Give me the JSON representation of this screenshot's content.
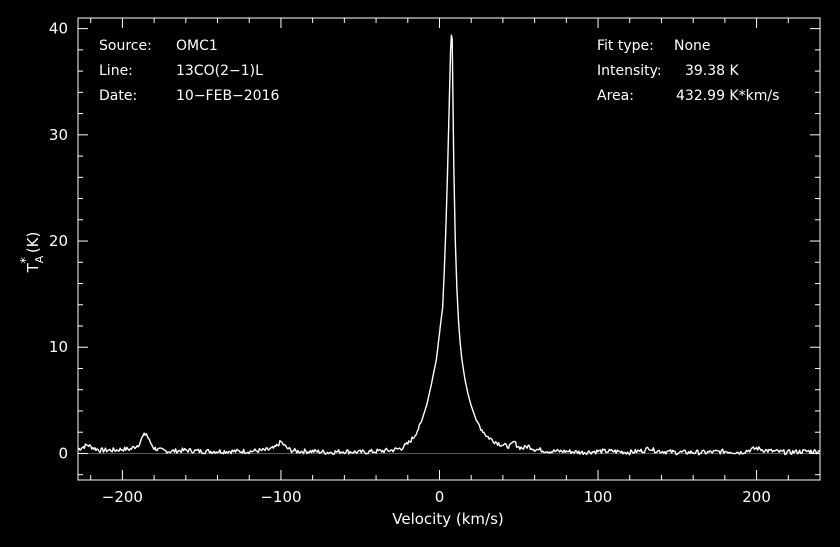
{
  "chart_data": {
    "type": "line",
    "xlabel": "Velocity (km/s)",
    "ylabel_main": "T",
    "ylabel_sub": "A",
    "ylabel_sup": "*",
    "ylabel_unit": "(K)",
    "xlim": [
      -228,
      240
    ],
    "ylim": [
      -2.5,
      41
    ],
    "xticks": [
      -200,
      -100,
      0,
      100,
      200
    ],
    "yticks": [
      0,
      10,
      20,
      30,
      40
    ],
    "xtick_labels": [
      "−200",
      "−100",
      "0",
      "100",
      "200"
    ],
    "ytick_labels": [
      "0",
      "10",
      "20",
      "30",
      "40"
    ],
    "baseline": 0,
    "info_left": {
      "source_label": "Source:",
      "source_value": "OMC1",
      "line_label": "Line:",
      "line_value": "13CO(2−1)L",
      "date_label": "Date:",
      "date_value": "10−FEB−2016"
    },
    "info_right": {
      "fit_label": "Fit type:",
      "fit_value": "None",
      "intensity_label": "Intensity:",
      "intensity_value": "39.38 K",
      "area_label": "Area:",
      "area_value": "432.99 K*km/s"
    },
    "series": [
      {
        "x": [
          -228,
          -222,
          -218,
          -214,
          -210,
          -205,
          -200,
          -195,
          -190,
          -187,
          -185,
          -183,
          -180,
          -176,
          -170,
          -160,
          -150,
          -140,
          -130,
          -120,
          -110,
          -104,
          -100,
          -97,
          -94,
          -90,
          -80,
          -70,
          -60,
          -50,
          -40,
          -30,
          -24,
          -20,
          -16,
          -12,
          -8,
          -5,
          -2,
          0,
          2,
          3,
          4,
          5,
          6,
          7,
          7.5,
          8,
          8.5,
          9,
          10,
          11,
          12,
          13,
          14,
          16,
          18,
          20,
          23,
          26,
          30,
          34,
          38,
          42,
          45,
          47,
          48,
          50,
          53,
          56,
          60,
          65,
          70,
          80,
          90,
          100,
          110,
          120,
          125,
          130,
          132,
          135,
          140,
          150,
          160,
          170,
          180,
          190,
          195,
          198,
          200,
          205,
          210,
          220,
          230,
          240
        ],
        "values": [
          0.4,
          0.8,
          0.5,
          0.3,
          0.3,
          0.3,
          0.4,
          0.4,
          0.8,
          1.6,
          1.9,
          1.2,
          0.5,
          0.3,
          0.2,
          0.3,
          0.2,
          0.2,
          0.2,
          0.2,
          0.3,
          0.5,
          1.1,
          0.6,
          0.3,
          0.2,
          0.2,
          0.1,
          0.2,
          0.1,
          0.2,
          0.3,
          0.5,
          0.9,
          1.6,
          2.7,
          4.6,
          6.6,
          8.8,
          11.3,
          13.8,
          17,
          21,
          26,
          32,
          38,
          39.38,
          39,
          33,
          27,
          20,
          15.5,
          12.5,
          10.5,
          9,
          7,
          5.6,
          4.5,
          3.2,
          2.4,
          1.6,
          1.2,
          0.9,
          0.7,
          0.7,
          1.1,
          0.9,
          0.6,
          0.5,
          0.7,
          0.4,
          0.3,
          0.2,
          0.2,
          0.1,
          0.2,
          0.2,
          0.1,
          0.2,
          0.3,
          0.6,
          0.3,
          0.2,
          0.1,
          0.1,
          0.1,
          0.2,
          0.1,
          0.3,
          0.4,
          0.5,
          0.3,
          0.2,
          0.1,
          0.2,
          0.2
        ]
      }
    ]
  }
}
